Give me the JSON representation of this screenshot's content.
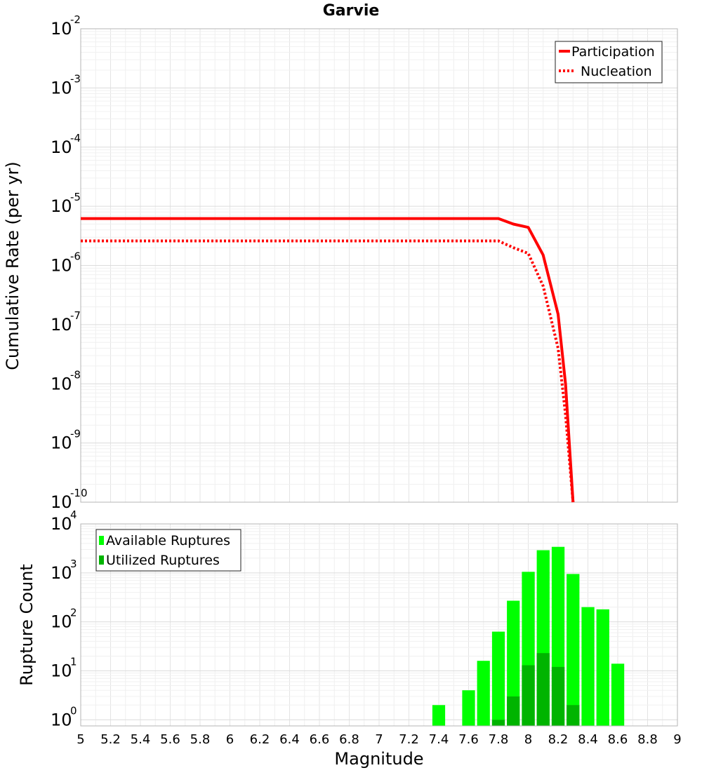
{
  "chart_data": [
    {
      "type": "line",
      "title": "Garvie",
      "xlabel": "",
      "ylabel": "Cumulative Rate (per yr)",
      "yscale": "log",
      "xlim": [
        5,
        9
      ],
      "ylim_exponent": [
        -10,
        -2
      ],
      "y_ticks": [
        {
          "base": "10",
          "exp": "-10"
        },
        {
          "base": "10",
          "exp": "-9"
        },
        {
          "base": "10",
          "exp": "-8"
        },
        {
          "base": "10",
          "exp": "-7"
        },
        {
          "base": "10",
          "exp": "-6"
        },
        {
          "base": "10",
          "exp": "-5"
        },
        {
          "base": "10",
          "exp": "-4"
        },
        {
          "base": "10",
          "exp": "-3"
        },
        {
          "base": "10",
          "exp": "-2"
        }
      ],
      "grid": true,
      "legend_position": "top-right",
      "color": "#ff0000",
      "series": [
        {
          "name": "Participation",
          "style": "solid",
          "x": [
            5.0,
            7.8,
            7.9,
            8.0,
            8.1,
            8.2,
            8.25,
            8.3
          ],
          "y": [
            6.2e-06,
            6.2e-06,
            5e-06,
            4.4e-06,
            1.5e-06,
            1.5e-07,
            1e-08,
            1e-10
          ]
        },
        {
          "name": "Nucleation",
          "style": "dotted",
          "x": [
            5.0,
            7.8,
            7.9,
            8.0,
            8.1,
            8.2,
            8.25,
            8.3
          ],
          "y": [
            2.6e-06,
            2.6e-06,
            2e-06,
            1.6e-06,
            4.5e-07,
            4e-08,
            3e-09,
            1e-10
          ]
        }
      ]
    },
    {
      "type": "bar",
      "title": "",
      "xlabel": "Magnitude",
      "ylabel": "Rupture Count",
      "yscale": "log",
      "xlim": [
        5,
        9
      ],
      "ylim": [
        0.75,
        10000
      ],
      "y_ticks": [
        {
          "base": "10",
          "exp": "0",
          "value": 1
        },
        {
          "base": "10",
          "exp": "1",
          "value": 10
        },
        {
          "base": "10",
          "exp": "2",
          "value": 100
        },
        {
          "base": "10",
          "exp": "3",
          "value": 1000
        },
        {
          "base": "10",
          "exp": "4",
          "value": 10000
        }
      ],
      "x_ticks": [
        "5",
        "5.2",
        "5.4",
        "5.6",
        "5.8",
        "6",
        "6.2",
        "6.4",
        "6.6",
        "6.8",
        "7",
        "7.2",
        "7.4",
        "7.6",
        "7.8",
        "8",
        "8.2",
        "8.4",
        "8.6",
        "8.8",
        "9"
      ],
      "grid": true,
      "legend_position": "top-left",
      "bin_width": 0.1,
      "series": [
        {
          "name": "Available Ruptures",
          "color": "#00ff00",
          "x": [
            7.4,
            7.6,
            7.7,
            7.8,
            7.9,
            8.0,
            8.1,
            8.2,
            8.3,
            8.4,
            8.5,
            8.6
          ],
          "values": [
            2,
            4,
            16,
            63,
            270,
            1050,
            2900,
            3400,
            950,
            200,
            180,
            14
          ]
        },
        {
          "name": "Utilized Ruptures",
          "color": "#00b400",
          "x": [
            7.8,
            7.9,
            8.0,
            8.1,
            8.2,
            8.3
          ],
          "values": [
            1,
            3,
            13,
            23,
            12,
            2
          ]
        }
      ]
    }
  ]
}
